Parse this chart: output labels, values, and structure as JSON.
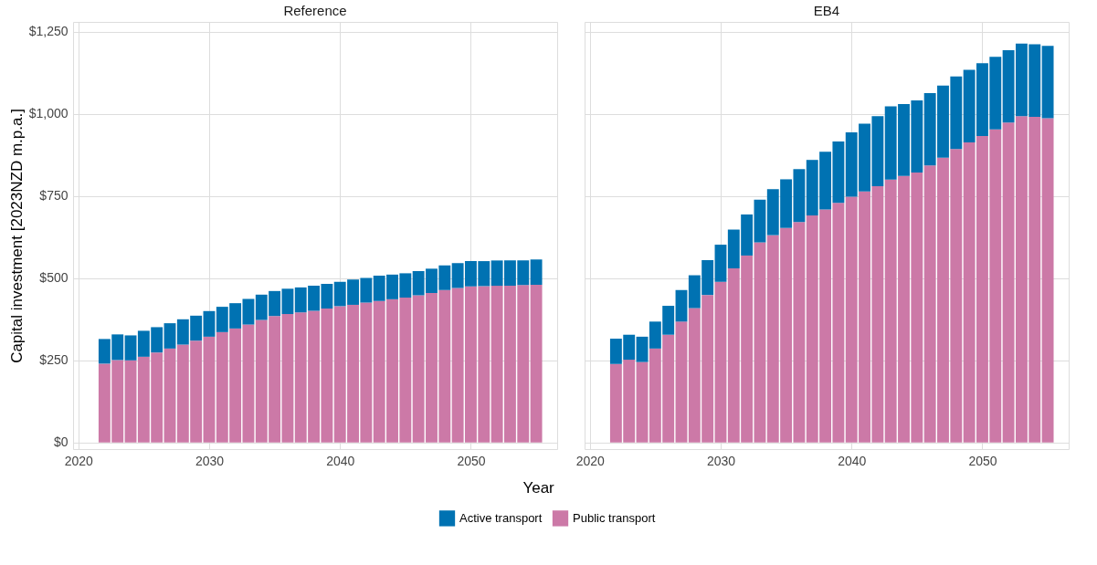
{
  "chart_data": [
    {
      "type": "bar",
      "title": "Reference",
      "xlabel": "Year",
      "ylabel": "Capital investment [2023NZD m.p.a.]",
      "stacked": true,
      "grid": true,
      "legend": "bottom",
      "x": [
        2022,
        2023,
        2024,
        2025,
        2026,
        2027,
        2028,
        2029,
        2030,
        2031,
        2032,
        2033,
        2034,
        2035,
        2036,
        2037,
        2038,
        2039,
        2040,
        2041,
        2042,
        2043,
        2044,
        2045,
        2046,
        2047,
        2048,
        2049,
        2050,
        2051,
        2052,
        2053,
        2054,
        2055
      ],
      "xlim": [
        2019.6,
        2056.6
      ],
      "xticks": [
        2020,
        2030,
        2040,
        2050
      ],
      "ylim": [
        -20,
        1280
      ],
      "yticks": [
        {
          "value": 0,
          "label": "$0"
        },
        {
          "value": 250,
          "label": "$250"
        },
        {
          "value": 500,
          "label": "$500"
        },
        {
          "value": 750,
          "label": "$750"
        },
        {
          "value": 1000,
          "label": "$1,000"
        },
        {
          "value": 1250,
          "label": "$1,250"
        }
      ],
      "series": [
        {
          "name": "Public transport",
          "color": "#cc79a7",
          "values": [
            240,
            251,
            250,
            261,
            274,
            286,
            298,
            310,
            322,
            336,
            347,
            359,
            373,
            385,
            391,
            396,
            401,
            408,
            415,
            419,
            426,
            431,
            436,
            441,
            448,
            455,
            464,
            470,
            475,
            476,
            477,
            477,
            479,
            480
          ]
        },
        {
          "name": "Active transport",
          "color": "#0072b2",
          "values": [
            75,
            78,
            76,
            79,
            77,
            77,
            77,
            76,
            78,
            77,
            77,
            78,
            77,
            76,
            77,
            76,
            76,
            75,
            74,
            77,
            75,
            77,
            75,
            74,
            74,
            74,
            75,
            76,
            77,
            76,
            77,
            77,
            75,
            77
          ]
        }
      ]
    },
    {
      "type": "bar",
      "title": "EB4",
      "stacked": true,
      "grid": true,
      "legend": "bottom",
      "tick_labels": "x",
      "x": [
        2022,
        2023,
        2024,
        2025,
        2026,
        2027,
        2028,
        2029,
        2030,
        2031,
        2032,
        2033,
        2034,
        2035,
        2036,
        2037,
        2038,
        2039,
        2040,
        2041,
        2042,
        2043,
        2044,
        2045,
        2046,
        2047,
        2048,
        2049,
        2050,
        2051,
        2052,
        2053,
        2054,
        2055
      ],
      "xlim": [
        2019.6,
        2056.6
      ],
      "xticks": [
        2020,
        2030,
        2040,
        2050
      ],
      "ylim": [
        -20,
        1280
      ],
      "yticks": [
        0,
        250,
        500,
        750,
        1000,
        1250
      ],
      "series": [
        {
          "name": "Public transport",
          "color": "#cc79a7",
          "values": [
            239,
            252,
            245,
            286,
            328,
            368,
            409,
            449,
            489,
            530,
            569,
            609,
            631,
            653,
            671,
            691,
            709,
            729,
            748,
            764,
            780,
            800,
            811,
            822,
            843,
            867,
            893,
            913,
            933,
            953,
            974,
            993,
            991,
            987
          ]
        },
        {
          "name": "Active transport",
          "color": "#0072b2",
          "values": [
            77,
            76,
            77,
            82,
            88,
            96,
            100,
            106,
            113,
            118,
            125,
            130,
            140,
            148,
            161,
            169,
            176,
            187,
            196,
            206,
            213,
            223,
            219,
            219,
            220,
            219,
            221,
            221,
            221,
            221,
            220,
            221,
            221,
            220
          ]
        }
      ]
    }
  ]
}
